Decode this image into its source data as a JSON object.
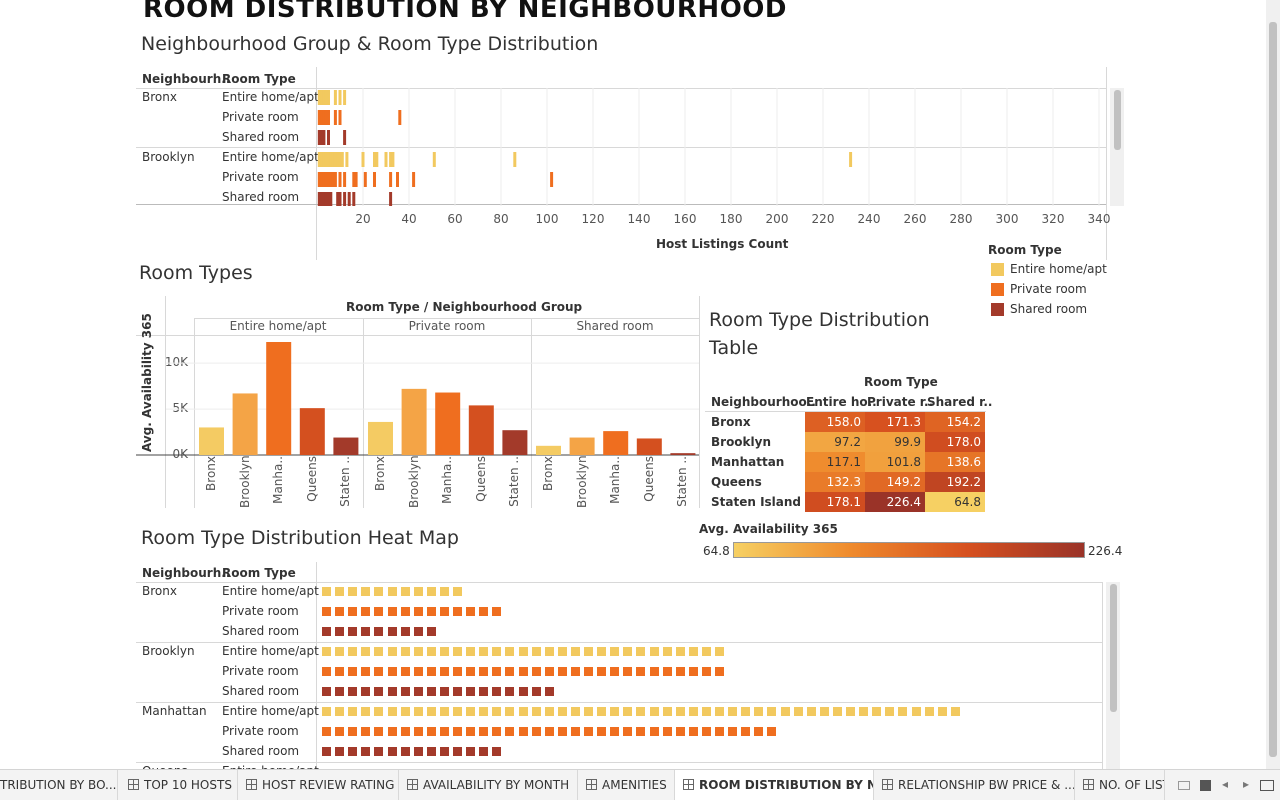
{
  "page_title": "ROOM DISTRIBUTION BY NEIGHBOURHOOD",
  "colors": {
    "entire": "#f2c95f",
    "private": "#ef6e1f",
    "shared": "#a33a2a"
  },
  "section1": {
    "title": "Neighbourhood Group & Room Type Distribution",
    "col_header_1": "Neighbourh..",
    "col_header_2": "Room Type",
    "groups": [
      {
        "name": "Bronx",
        "rows": [
          "Entire home/apt",
          "Private room",
          "Shared room"
        ]
      },
      {
        "name": "Brooklyn",
        "rows": [
          "Entire home/apt",
          "Private room",
          "Shared room"
        ]
      }
    ],
    "x_ticks": [
      "20",
      "40",
      "60",
      "80",
      "100",
      "120",
      "140",
      "160",
      "180",
      "200",
      "220",
      "240",
      "260",
      "280",
      "300",
      "320",
      "340"
    ],
    "x_label": "Host Listings Count"
  },
  "legend": {
    "title": "Room Type",
    "items": [
      "Entire home/apt",
      "Private room",
      "Shared room"
    ]
  },
  "section2": {
    "title": "Room Types",
    "header": "Room Type  /  Neighbourhood Group",
    "panels": [
      "Entire home/apt",
      "Private room",
      "Shared room"
    ],
    "y_label": "Avg. Availability 365",
    "y_ticks": [
      "10K",
      "5K",
      "0K"
    ],
    "categories": [
      "Bronx",
      "Brooklyn",
      "Manha..",
      "Queens",
      "Staten .."
    ]
  },
  "section3": {
    "title_line1": "Room Type Distribution",
    "title_line2": "Table",
    "room_type_header": "Room Type",
    "col_headers": [
      "Neighbourhoo..",
      "Entire ho..",
      "Private r..",
      "Shared r.."
    ],
    "rows": [
      {
        "name": "Bronx",
        "values": [
          "158.0",
          "171.3",
          "154.2"
        ]
      },
      {
        "name": "Brooklyn",
        "values": [
          "97.2",
          "99.9",
          "178.0"
        ]
      },
      {
        "name": "Manhattan",
        "values": [
          "117.1",
          "101.8",
          "138.6"
        ]
      },
      {
        "name": "Queens",
        "values": [
          "132.3",
          "149.2",
          "192.2"
        ]
      },
      {
        "name": "Staten Island",
        "values": [
          "178.1",
          "226.4",
          "64.8"
        ]
      }
    ],
    "scale_title": "Avg. Availability 365",
    "scale_min": "64.8",
    "scale_max": "226.4"
  },
  "section4": {
    "title": "Room Type Distribution Heat Map",
    "col_header_1": "Neighbourh..",
    "col_header_2": "Room Type",
    "groups": [
      {
        "name": "Bronx",
        "rows": [
          "Entire home/apt",
          "Private room",
          "Shared room"
        ]
      },
      {
        "name": "Brooklyn",
        "rows": [
          "Entire home/apt",
          "Private room",
          "Shared room"
        ]
      },
      {
        "name": "Manhattan",
        "rows": [
          "Entire home/apt",
          "Private room",
          "Shared room"
        ]
      },
      {
        "name": "Queens",
        "rows": [
          "Entire home/apt"
        ]
      }
    ]
  },
  "tabs": [
    "TRIBUTION BY BO...",
    "TOP 10 HOSTS",
    "HOST REVIEW RATING",
    "AVAILABILITY BY MONTH",
    "AMENITIES",
    "ROOM DISTRIBUTION BY N...",
    "RELATIONSHIP BW PRICE & ...",
    "NO. OF LIST"
  ],
  "chart_data": [
    {
      "type": "bar",
      "title": "Room Types",
      "ylabel": "Avg. Availability 365",
      "ylim": [
        0,
        13000
      ],
      "panels": [
        "Entire home/apt",
        "Private room",
        "Shared room"
      ],
      "categories": [
        "Bronx",
        "Brooklyn",
        "Manha..",
        "Queens",
        "Staten .."
      ],
      "series": [
        {
          "name": "Entire home/apt",
          "values": [
            3000,
            6700,
            12300,
            5100,
            1900
          ]
        },
        {
          "name": "Private room",
          "values": [
            3600,
            7200,
            6800,
            5400,
            2700
          ]
        },
        {
          "name": "Shared room",
          "values": [
            1000,
            1900,
            2600,
            1800,
            200
          ]
        }
      ]
    },
    {
      "type": "heatmap",
      "title": "Room Type Distribution Table",
      "rows": [
        "Bronx",
        "Brooklyn",
        "Manhattan",
        "Queens",
        "Staten Island"
      ],
      "columns": [
        "Entire ho..",
        "Private r..",
        "Shared r.."
      ],
      "values": [
        [
          158.0,
          171.3,
          154.2
        ],
        [
          97.2,
          99.9,
          178.0
        ],
        [
          117.1,
          101.8,
          138.6
        ],
        [
          132.3,
          149.2,
          192.2
        ],
        [
          178.1,
          226.4,
          64.8
        ]
      ],
      "color_range": [
        64.8,
        226.4
      ]
    },
    {
      "type": "scatter",
      "title": "Neighbourhood Group & Room Type Distribution",
      "xlabel": "Host Listings Count",
      "xlim": [
        0,
        350
      ],
      "rows": [
        "Bronx / Entire home/apt",
        "Bronx / Private room",
        "Bronx / Shared room",
        "Brooklyn / Entire home/apt",
        "Brooklyn / Private room",
        "Brooklyn / Shared room"
      ],
      "points": [
        [
          1,
          2,
          3,
          4,
          5,
          8,
          10,
          12
        ],
        [
          1,
          2,
          3,
          4,
          5,
          8,
          10,
          36
        ],
        [
          1,
          2,
          3,
          5,
          12
        ],
        [
          1,
          2,
          3,
          4,
          5,
          6,
          7,
          8,
          9,
          10,
          11,
          13,
          20,
          25,
          26,
          30,
          32,
          33,
          51,
          86,
          232
        ],
        [
          1,
          2,
          3,
          4,
          5,
          6,
          7,
          8,
          10,
          12,
          16,
          17,
          21,
          25,
          32,
          35,
          42,
          102
        ],
        [
          1,
          2,
          3,
          4,
          5,
          6,
          9,
          10,
          12,
          14,
          16,
          32
        ]
      ]
    },
    {
      "type": "heatmap",
      "title": "Room Type Distribution Heat Map",
      "rows": [
        "Bronx / Entire home/apt",
        "Bronx / Private room",
        "Bronx / Shared room",
        "Brooklyn / Entire home/apt",
        "Brooklyn / Private room",
        "Brooklyn / Shared room",
        "Manhattan / Entire home/apt",
        "Manhattan / Private room",
        "Manhattan / Shared room"
      ],
      "counts": [
        11,
        14,
        9,
        31,
        31,
        18,
        49,
        35,
        14
      ]
    }
  ]
}
